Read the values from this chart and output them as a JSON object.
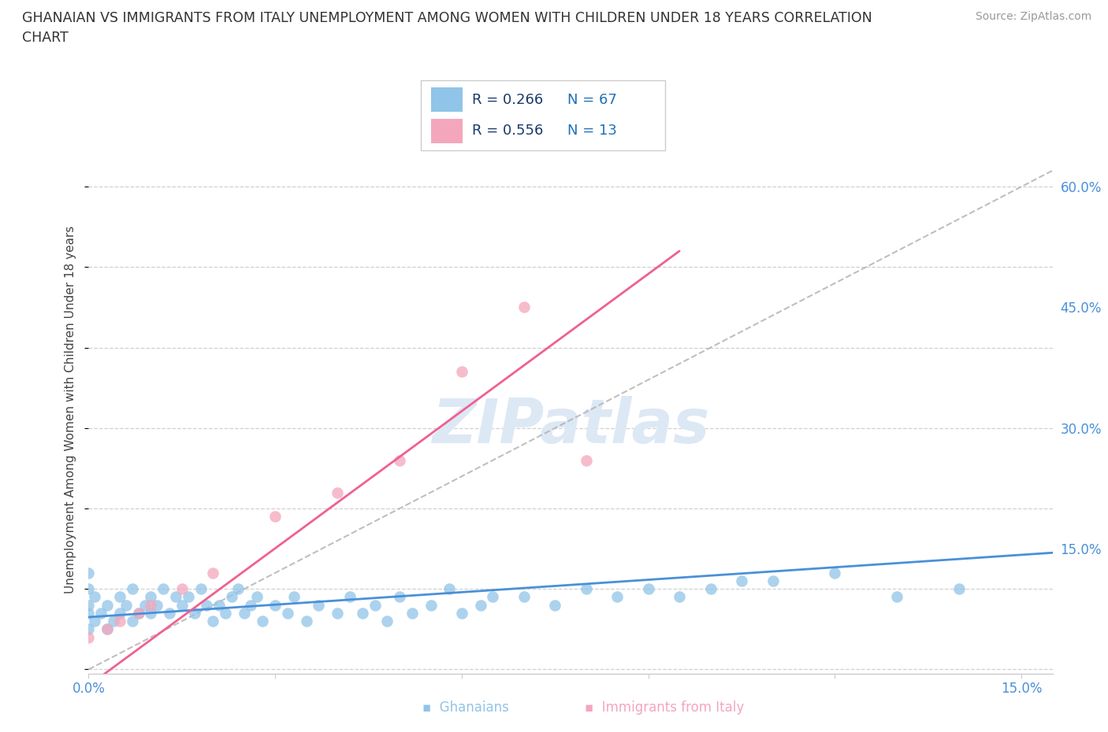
{
  "title_line1": "GHANAIAN VS IMMIGRANTS FROM ITALY UNEMPLOYMENT AMONG WOMEN WITH CHILDREN UNDER 18 YEARS CORRELATION",
  "title_line2": "CHART",
  "source": "Source: ZipAtlas.com",
  "ylabel": "Unemployment Among Women with Children Under 18 years",
  "xlim": [
    0.0,
    0.155
  ],
  "ylim": [
    -0.005,
    0.65
  ],
  "ytick_vals": [
    0.0,
    0.15,
    0.3,
    0.45,
    0.6
  ],
  "ytick_labels": [
    "",
    "15.0%",
    "30.0%",
    "45.0%",
    "60.0%"
  ],
  "xtick_vals": [
    0.0,
    0.03,
    0.06,
    0.09,
    0.12,
    0.15
  ],
  "xtick_labels": [
    "0.0%",
    "",
    "",
    "",
    "",
    "15.0%"
  ],
  "background_color": "#ffffff",
  "grid_color": "#d0d0d0",
  "ghanaian_color": "#90c4e8",
  "italy_color": "#f4a6bc",
  "ghanaian_line_color": "#4a90d9",
  "italy_line_color": "#f06090",
  "dash_line_color": "#b0b0b0",
  "legend_R_color": "#1a3a6b",
  "legend_N_color": "#2171b5",
  "tick_color": "#4a90d9",
  "watermark_color": "#dde8f5",
  "ghanaian_R": 0.266,
  "ghanaian_N": 67,
  "italy_R": 0.556,
  "italy_N": 13,
  "gh_x": [
    0.0,
    0.0,
    0.0,
    0.0,
    0.0,
    0.001,
    0.001,
    0.002,
    0.003,
    0.003,
    0.004,
    0.005,
    0.005,
    0.006,
    0.007,
    0.007,
    0.008,
    0.009,
    0.01,
    0.01,
    0.011,
    0.012,
    0.013,
    0.014,
    0.015,
    0.016,
    0.017,
    0.018,
    0.019,
    0.02,
    0.021,
    0.022,
    0.023,
    0.024,
    0.025,
    0.026,
    0.027,
    0.028,
    0.03,
    0.032,
    0.033,
    0.035,
    0.037,
    0.04,
    0.042,
    0.044,
    0.046,
    0.048,
    0.05,
    0.052,
    0.055,
    0.058,
    0.06,
    0.063,
    0.065,
    0.07,
    0.075,
    0.08,
    0.085,
    0.09,
    0.095,
    0.1,
    0.105,
    0.11,
    0.12,
    0.13,
    0.14
  ],
  "gh_y": [
    0.05,
    0.07,
    0.08,
    0.1,
    0.12,
    0.06,
    0.09,
    0.07,
    0.05,
    0.08,
    0.06,
    0.07,
    0.09,
    0.08,
    0.1,
    0.06,
    0.07,
    0.08,
    0.07,
    0.09,
    0.08,
    0.1,
    0.07,
    0.09,
    0.08,
    0.09,
    0.07,
    0.1,
    0.08,
    0.06,
    0.08,
    0.07,
    0.09,
    0.1,
    0.07,
    0.08,
    0.09,
    0.06,
    0.08,
    0.07,
    0.09,
    0.06,
    0.08,
    0.07,
    0.09,
    0.07,
    0.08,
    0.06,
    0.09,
    0.07,
    0.08,
    0.1,
    0.07,
    0.08,
    0.09,
    0.09,
    0.08,
    0.1,
    0.09,
    0.1,
    0.09,
    0.1,
    0.11,
    0.11,
    0.12,
    0.09,
    0.1
  ],
  "it_x": [
    0.0,
    0.003,
    0.005,
    0.008,
    0.01,
    0.015,
    0.02,
    0.03,
    0.04,
    0.05,
    0.06,
    0.07,
    0.08
  ],
  "it_y": [
    0.04,
    0.05,
    0.06,
    0.07,
    0.08,
    0.1,
    0.12,
    0.19,
    0.22,
    0.26,
    0.37,
    0.45,
    0.26
  ]
}
